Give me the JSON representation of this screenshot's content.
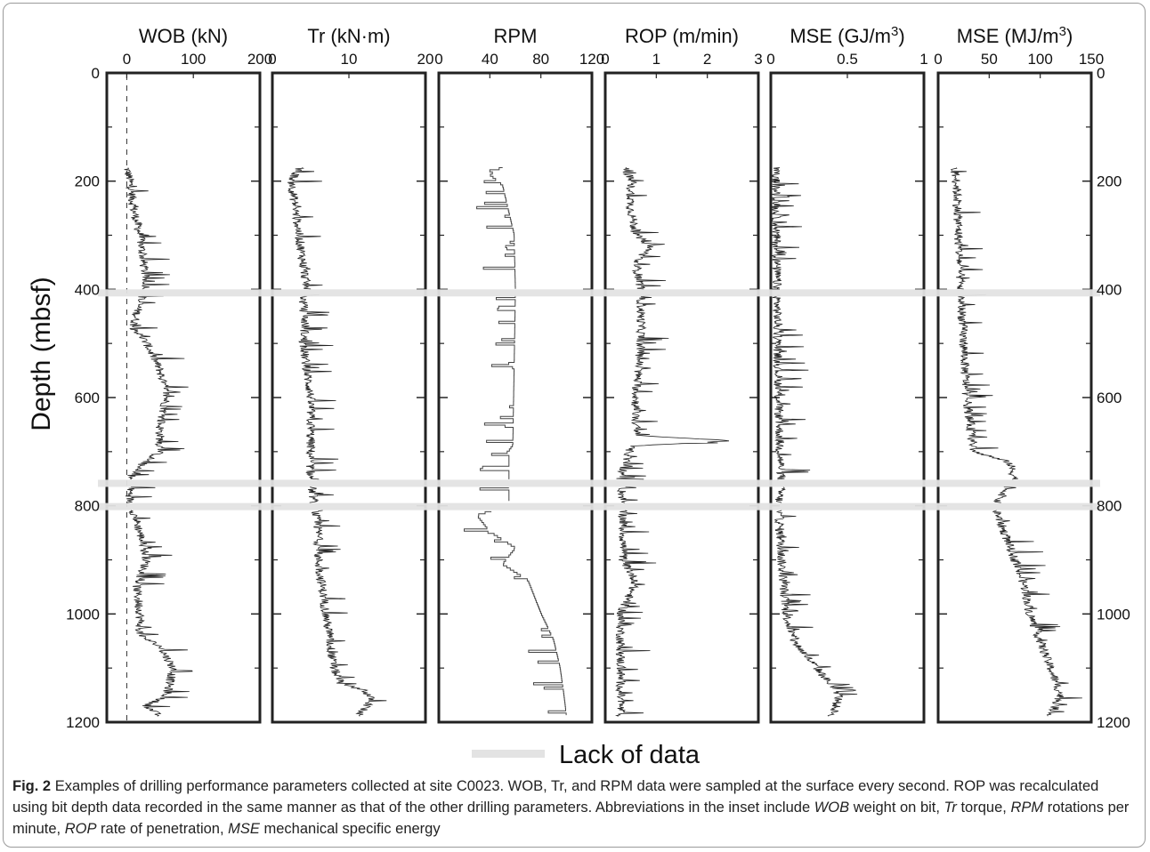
{
  "figure": {
    "y_axis_label": "Depth (mbsf)",
    "depth_ticks": [
      "0",
      "200",
      "400",
      "600",
      "800",
      "1000",
      "1200"
    ],
    "legend_label": "Lack of data",
    "colors": {
      "trace": "#222222",
      "frame": "#222222",
      "gap": "#e3e3e3",
      "rpm": "#444444"
    }
  },
  "caption": {
    "fig_label": "Fig. 2",
    "text": "Examples of drilling performance parameters collected at site C0023. WOB, Tr, and RPM data were sampled at the surface every second. ROP was recalculated using bit depth data recorded in the same manner as that of the other drilling parameters. Abbreviations in the inset include",
    "abbr": [
      {
        "term": "WOB",
        "def": "weight on bit,"
      },
      {
        "term": "Tr",
        "def": "torque,"
      },
      {
        "term": "RPM",
        "def": "rotations per minute,"
      },
      {
        "term": "ROP",
        "def": "rate of penetration,"
      },
      {
        "term": "MSE",
        "def": "mechanical specific energy"
      }
    ]
  },
  "chart_data": {
    "type": "line",
    "y_axis": {
      "label": "Depth (mbsf)",
      "range": [
        0,
        1200
      ],
      "ticks": [
        0,
        200,
        400,
        600,
        800,
        1000,
        1200
      ],
      "inverted": true
    },
    "lack_of_data_intervals": [
      [
        400,
        410
      ],
      [
        752,
        765
      ],
      [
        795,
        808
      ]
    ],
    "panels": [
      {
        "title": "WOB (kN)",
        "xlim": [
          -30,
          200
        ],
        "xticks": [
          0,
          100,
          200
        ],
        "xticklabels": [
          "0",
          "100",
          "200"
        ],
        "reference_line": 0,
        "profile": [
          [
            175,
            0
          ],
          [
            200,
            5
          ],
          [
            250,
            10
          ],
          [
            300,
            20
          ],
          [
            350,
            25
          ],
          [
            400,
            30
          ],
          [
            420,
            20
          ],
          [
            470,
            10
          ],
          [
            500,
            30
          ],
          [
            550,
            50
          ],
          [
            600,
            60
          ],
          [
            650,
            50
          ],
          [
            700,
            50
          ],
          [
            730,
            15
          ],
          [
            750,
            5
          ],
          [
            770,
            5
          ],
          [
            790,
            5
          ],
          [
            810,
            10
          ],
          [
            850,
            20
          ],
          [
            900,
            30
          ],
          [
            950,
            15
          ],
          [
            1000,
            20
          ],
          [
            1040,
            20
          ],
          [
            1060,
            50
          ],
          [
            1100,
            70
          ],
          [
            1150,
            60
          ],
          [
            1170,
            30
          ],
          [
            1190,
            50
          ]
        ]
      },
      {
        "title": "Tr (kN·m)",
        "xlim": [
          0,
          20
        ],
        "xticks": [
          0,
          10,
          20
        ],
        "xticklabels": [
          "0",
          "10",
          "20"
        ],
        "profile": [
          [
            175,
            3.5
          ],
          [
            200,
            2.5
          ],
          [
            250,
            3
          ],
          [
            300,
            3.5
          ],
          [
            350,
            4
          ],
          [
            400,
            4.5
          ],
          [
            420,
            4
          ],
          [
            470,
            4.3
          ],
          [
            500,
            4
          ],
          [
            550,
            4.5
          ],
          [
            600,
            5
          ],
          [
            650,
            5
          ],
          [
            700,
            5
          ],
          [
            750,
            5
          ],
          [
            800,
            5.5
          ],
          [
            850,
            6
          ],
          [
            900,
            6
          ],
          [
            950,
            6.5
          ],
          [
            1000,
            7
          ],
          [
            1050,
            7.5
          ],
          [
            1100,
            8
          ],
          [
            1130,
            9
          ],
          [
            1140,
            12
          ],
          [
            1160,
            13
          ],
          [
            1190,
            11
          ]
        ]
      },
      {
        "title": "RPM",
        "xlim": [
          0,
          120
        ],
        "xticks": [
          0,
          40,
          80,
          120
        ],
        "xticklabels": [
          "0",
          "40",
          "80",
          "120"
        ],
        "profile": [
          [
            175,
            50
          ],
          [
            190,
            40
          ],
          [
            210,
            50
          ],
          [
            300,
            59
          ],
          [
            400,
            60
          ],
          [
            410,
            60
          ],
          [
            690,
            58
          ],
          [
            700,
            55
          ],
          [
            800,
            55
          ],
          [
            820,
            30
          ],
          [
            850,
            40
          ],
          [
            880,
            60
          ],
          [
            910,
            50
          ],
          [
            940,
            70
          ],
          [
            1000,
            80
          ],
          [
            1050,
            90
          ],
          [
            1100,
            95
          ],
          [
            1150,
            98
          ],
          [
            1190,
            100
          ]
        ]
      },
      {
        "title": "ROP (m/min)",
        "xlim": [
          0,
          3
        ],
        "xticks": [
          0,
          1,
          2,
          3
        ],
        "xticklabels": [
          "0",
          "1",
          "2",
          "3"
        ],
        "profile": [
          [
            175,
            0.4
          ],
          [
            200,
            0.5
          ],
          [
            250,
            0.5
          ],
          [
            300,
            0.6
          ],
          [
            320,
            0.9
          ],
          [
            350,
            0.6
          ],
          [
            400,
            0.7
          ],
          [
            420,
            0.7
          ],
          [
            500,
            0.7
          ],
          [
            600,
            0.6
          ],
          [
            670,
            0.6
          ],
          [
            680,
            2.5
          ],
          [
            690,
            0.5
          ],
          [
            750,
            0.3
          ],
          [
            800,
            0.35
          ],
          [
            850,
            0.35
          ],
          [
            900,
            0.35
          ],
          [
            940,
            0.6
          ],
          [
            1000,
            0.3
          ],
          [
            1100,
            0.3
          ],
          [
            1190,
            0.3
          ]
        ]
      },
      {
        "title": "MSE (GJ/m3)",
        "xlim": [
          0,
          1
        ],
        "xticks": [
          0,
          0.5,
          1
        ],
        "xticklabels": [
          "0",
          "0.5",
          "1"
        ],
        "profile": [
          [
            175,
            0.03
          ],
          [
            400,
            0.04
          ],
          [
            600,
            0.05
          ],
          [
            700,
            0.06
          ],
          [
            750,
            0.07
          ],
          [
            800,
            0.05
          ],
          [
            900,
            0.07
          ],
          [
            1000,
            0.1
          ],
          [
            1050,
            0.15
          ],
          [
            1100,
            0.3
          ],
          [
            1150,
            0.45
          ],
          [
            1190,
            0.4
          ]
        ]
      },
      {
        "title": "MSE (MJ/m3)",
        "xlim": [
          0,
          150
        ],
        "xticks": [
          0,
          50,
          100,
          150
        ],
        "xticklabels": [
          "0",
          "50",
          "100",
          "150"
        ],
        "profile": [
          [
            175,
            15
          ],
          [
            200,
            18
          ],
          [
            300,
            20
          ],
          [
            400,
            22
          ],
          [
            500,
            25
          ],
          [
            600,
            28
          ],
          [
            700,
            35
          ],
          [
            720,
            70
          ],
          [
            750,
            75
          ],
          [
            800,
            55
          ],
          [
            850,
            65
          ],
          [
            900,
            75
          ],
          [
            950,
            85
          ],
          [
            1000,
            90
          ],
          [
            1050,
            100
          ],
          [
            1100,
            110
          ],
          [
            1150,
            120
          ],
          [
            1190,
            110
          ]
        ]
      }
    ]
  }
}
